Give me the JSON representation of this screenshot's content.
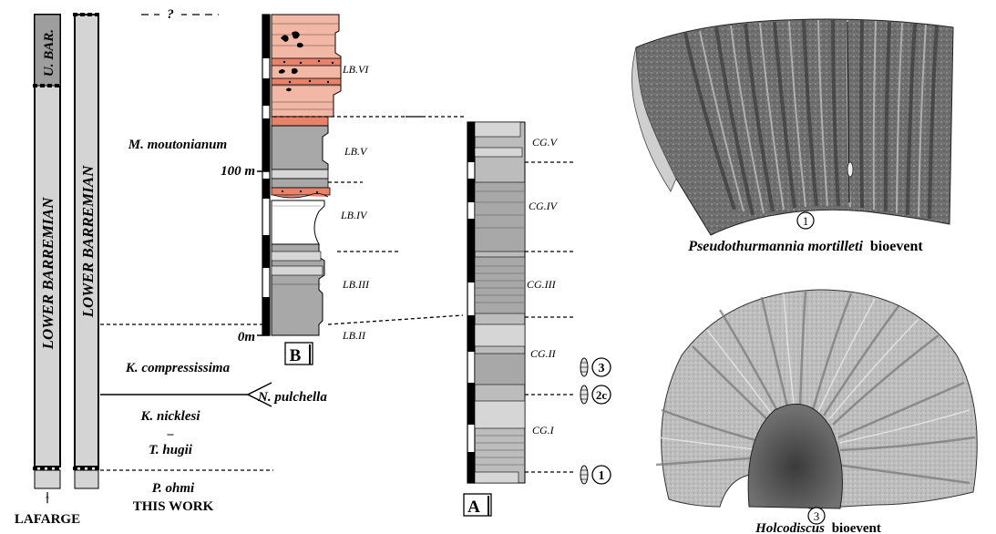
{
  "columns": {
    "lafarge_stage": "LOWER BARREMIAN",
    "lafarge_upper": "U. BAR.",
    "lafarge_label": "LAFARGE",
    "this_work_stage": "LOWER BARREMIAN",
    "this_work_label": "THIS WORK",
    "arrow_glyph": "↑"
  },
  "zones": {
    "top_uncertain": "?",
    "moutonianum": "M. moutonianum",
    "compressissima": "K. compressissima",
    "pulchella": "N. pulchella",
    "nicklesi": "K. nicklesi",
    "dash": "–",
    "hugii": "T. hugii",
    "ohmi": "P. ohmi"
  },
  "section_b": {
    "label": "B",
    "scale_top": "100 m",
    "scale_bottom": "0m",
    "units": [
      "LB.VI",
      "LB.V",
      "LB.IV",
      "LB.III",
      "LB.II"
    ]
  },
  "section_a": {
    "label": "A",
    "units": [
      "CG.V",
      "CG.IV",
      "CG.III",
      "CG.II",
      "CG.I"
    ],
    "bioevent_markers": [
      "3",
      "2c",
      "1"
    ]
  },
  "fossils": {
    "top_number": "1",
    "top_genus": "Pseudothurmannia mortilleti",
    "top_suffix": "bioevent",
    "bottom_number": "3",
    "bottom_genus": "Holcodiscus",
    "bottom_suffix": "bioevent"
  },
  "colors": {
    "limestone_gray": "#a8a8a8",
    "marl_light": "#d6d6d6",
    "orange_bed": "#e8836a",
    "salmon_bed": "#f3b7a5",
    "column_fill": "#d4d4d4"
  }
}
